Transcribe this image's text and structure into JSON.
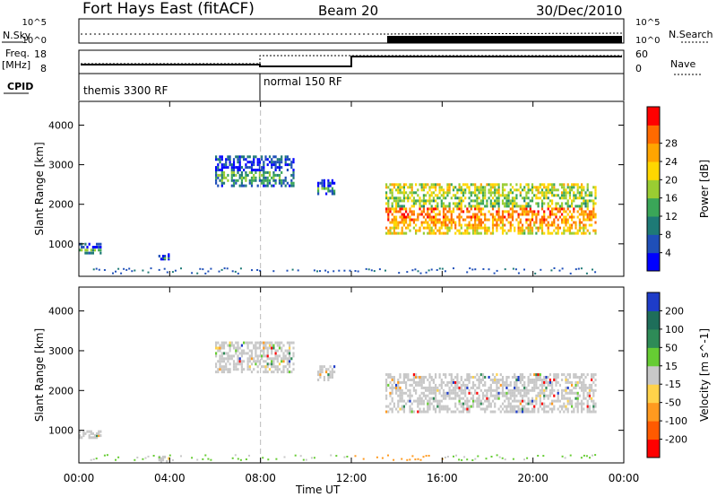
{
  "header": {
    "station": "Fort Hays East (fitACF)",
    "beam": "Beam 20",
    "date": "30/Dec/2010"
  },
  "aux": {
    "nsky_label": "N.Sky",
    "nsky_ticks": [
      "10^5",
      "10^0"
    ],
    "nsearch_label": "N.Search",
    "nsearch_ticks": [
      "10^5",
      "10^0"
    ],
    "freq_label": "Freq.",
    "freq_unit": "[MHz]",
    "freq_ticks": [
      "18",
      "8"
    ],
    "nave_label": "Nave",
    "nave_ticks": [
      "60",
      "0"
    ],
    "cpid_label": "CPID",
    "cpid_modes": [
      {
        "label": "themis 3300 RF",
        "start_hour": 0
      },
      {
        "label": "normal 150 RF",
        "start_hour": 8
      }
    ]
  },
  "chart_data": [
    {
      "type": "heatmap",
      "title": "",
      "xlabel": "Time UT",
      "ylabel": "Slant Range [km]",
      "xlim": [
        0,
        24
      ],
      "ylim": [
        180,
        4600
      ],
      "x_ticks": [
        "00:00",
        "04:00",
        "08:00",
        "12:00",
        "16:00",
        "20:00",
        "00:00"
      ],
      "y_ticks": [
        1000,
        2000,
        3000,
        4000
      ],
      "colorbar": {
        "label": "Power [dB]",
        "ticks": [
          4,
          8,
          12,
          16,
          20,
          24,
          28
        ],
        "range": [
          0,
          30
        ],
        "colors": [
          "#0000ff",
          "#1f4fb8",
          "#1e7a76",
          "#3aa658",
          "#9acd32",
          "#ffd700",
          "#ffa500",
          "#ff6a00",
          "#ff0000"
        ]
      },
      "echo_regions": [
        {
          "t_start": 0.0,
          "t_end": 1.0,
          "r_min": 800,
          "r_max": 1100,
          "power": 8
        },
        {
          "t_start": 3.5,
          "t_end": 4.0,
          "r_min": 650,
          "r_max": 800,
          "power": 6
        },
        {
          "t_start": 6.0,
          "t_end": 9.5,
          "r_min": 2500,
          "r_max": 3300,
          "power": 6
        },
        {
          "t_start": 10.5,
          "t_end": 11.3,
          "r_min": 2300,
          "r_max": 2700,
          "power": 6
        },
        {
          "t_start": 13.5,
          "t_end": 22.8,
          "r_min": 1300,
          "r_max": 2600,
          "power": 18
        }
      ]
    },
    {
      "type": "heatmap",
      "title": "",
      "xlabel": "Time UT",
      "ylabel": "Slant Range [km]",
      "xlim": [
        0,
        24
      ],
      "ylim": [
        180,
        4600
      ],
      "x_ticks": [
        "00:00",
        "04:00",
        "08:00",
        "12:00",
        "16:00",
        "20:00",
        "00:00"
      ],
      "y_ticks": [
        1000,
        2000,
        3000,
        4000
      ],
      "colorbar": {
        "label": "Velocity [m s^-1]",
        "ticks": [
          200,
          100,
          50,
          15,
          -15,
          -50,
          -100,
          -200
        ],
        "colors": [
          "#1e3cc8",
          "#1e6e5a",
          "#2e8b57",
          "#66cc33",
          "#c8c8c8",
          "#ffd24a",
          "#ff9a1f",
          "#ff5a00",
          "#ff0000"
        ]
      },
      "echo_regions": [
        {
          "t_start": 0.0,
          "t_end": 1.0,
          "r_min": 850,
          "r_max": 1050,
          "velocity": 0
        },
        {
          "t_start": 3.5,
          "t_end": 4.0,
          "r_min": 250,
          "r_max": 400,
          "velocity": 30
        },
        {
          "t_start": 6.0,
          "t_end": 9.5,
          "r_min": 2500,
          "r_max": 3300,
          "velocity": 0
        },
        {
          "t_start": 10.5,
          "t_end": 11.3,
          "r_min": 2300,
          "r_max": 2700,
          "velocity": 0
        },
        {
          "t_start": 13.5,
          "t_end": 22.8,
          "r_min": 1500,
          "r_max": 2500,
          "velocity": 0
        }
      ]
    }
  ]
}
